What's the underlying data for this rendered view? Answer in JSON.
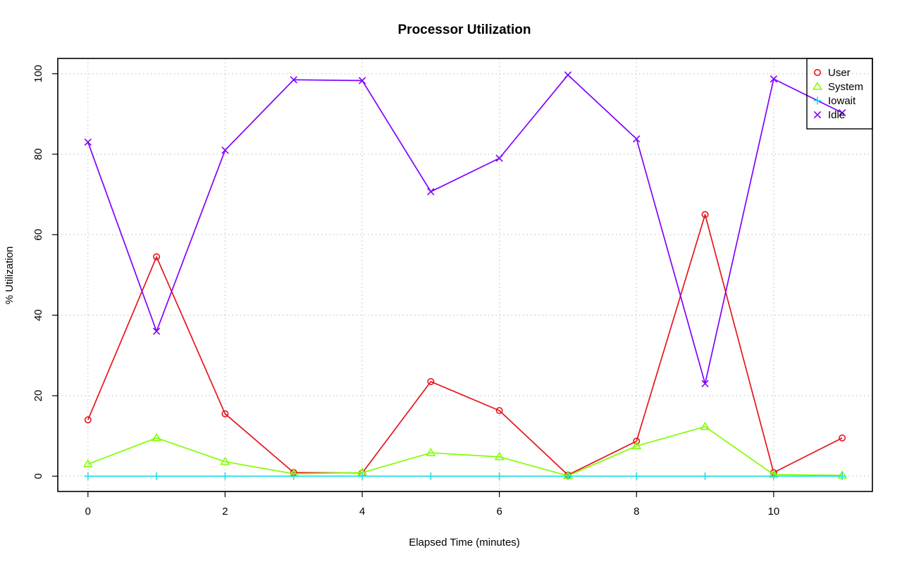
{
  "chart_data": {
    "type": "line",
    "title": "Processor Utilization",
    "xlabel": "Elapsed Time (minutes)",
    "ylabel": "% Utilization",
    "x": [
      0,
      1,
      2,
      3,
      4,
      5,
      6,
      7,
      8,
      9,
      10,
      11
    ],
    "xlim": [
      -0.44,
      11.44
    ],
    "ylim": [
      -3.8,
      103.8
    ],
    "xticks": [
      0,
      2,
      4,
      6,
      8,
      10
    ],
    "yticks": [
      0,
      20,
      40,
      60,
      80,
      100
    ],
    "grid": true,
    "legend_position": "top-right",
    "series": [
      {
        "name": "User",
        "color": "#e8141b",
        "marker": "circle",
        "values": [
          14,
          54.5,
          15.5,
          0.9,
          0.8,
          23.5,
          16.3,
          0.3,
          8.7,
          65,
          0.9,
          9.5
        ]
      },
      {
        "name": "System",
        "color": "#80ff00",
        "marker": "triangle",
        "values": [
          3,
          9.5,
          3.6,
          0.6,
          0.9,
          5.8,
          4.8,
          0.1,
          7.5,
          12.3,
          0.4,
          0.2
        ]
      },
      {
        "name": "Iowait",
        "color": "#1ee0ee",
        "marker": "plus",
        "values": [
          0,
          0,
          0,
          0,
          0,
          0,
          0,
          0,
          0,
          0,
          0,
          0
        ]
      },
      {
        "name": "Idle",
        "color": "#8000ff",
        "marker": "cross",
        "values": [
          83,
          36,
          81,
          98.5,
          98.3,
          70.7,
          79,
          99.7,
          83.8,
          23,
          98.7,
          90.3
        ]
      }
    ]
  }
}
